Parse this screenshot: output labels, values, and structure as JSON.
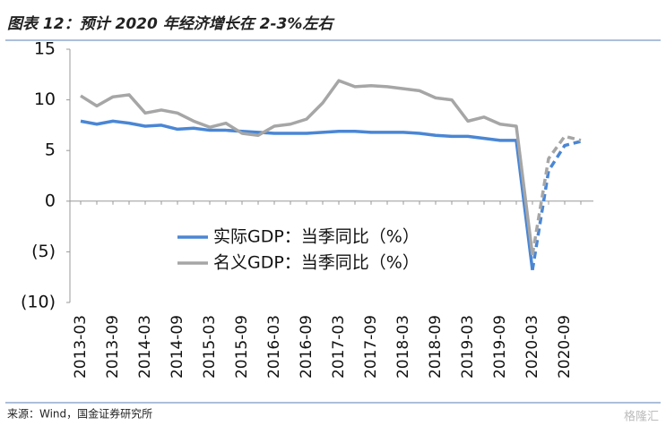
{
  "chart_data": {
    "type": "line",
    "title": "图表 12：预计 2020 年经济增长在 2-3%左右",
    "source": "来源：Wind，国金证券研究所",
    "watermark": "格隆汇",
    "categories": [
      "2013-03",
      null,
      "2013-09",
      null,
      "2014-03",
      null,
      "2014-09",
      null,
      "2015-03",
      null,
      "2015-09",
      null,
      "2016-03",
      null,
      "2016-09",
      null,
      "2017-03",
      null,
      "2017-09",
      null,
      "2018-03",
      null,
      "2018-09",
      null,
      "2019-03",
      null,
      "2019-09",
      null,
      "2020-03",
      null,
      "2020-09",
      null
    ],
    "ylim": [
      -10,
      15
    ],
    "yticks": [
      {
        "value": -10,
        "label": "(10)"
      },
      {
        "value": -5,
        "label": "(5)"
      },
      0,
      5,
      10,
      15
    ],
    "negative_tick_color": "#e00000",
    "dash_from": "2020-03",
    "series": [
      {
        "name": "实际GDP：当季同比（%）",
        "color": "#4a86d4",
        "values": [
          7.9,
          7.6,
          7.9,
          7.7,
          7.4,
          7.5,
          7.1,
          7.2,
          7.0,
          7.0,
          6.9,
          6.8,
          6.7,
          6.7,
          6.7,
          6.8,
          6.9,
          6.9,
          6.8,
          6.8,
          6.8,
          6.7,
          6.5,
          6.4,
          6.4,
          6.2,
          6.0,
          6.0,
          -6.8,
          3.0,
          5.5,
          5.9
        ]
      },
      {
        "name": "名义GDP：当季同比（%）",
        "color": "#a6a6a6",
        "values": [
          10.4,
          9.4,
          10.3,
          10.5,
          8.7,
          9.0,
          8.7,
          7.9,
          7.3,
          7.7,
          6.7,
          6.5,
          7.4,
          7.6,
          8.1,
          9.7,
          11.9,
          11.3,
          11.4,
          11.3,
          11.1,
          10.9,
          10.2,
          10.0,
          7.9,
          8.3,
          7.6,
          7.4,
          -5.3,
          4.2,
          6.4,
          6.0
        ]
      }
    ]
  }
}
